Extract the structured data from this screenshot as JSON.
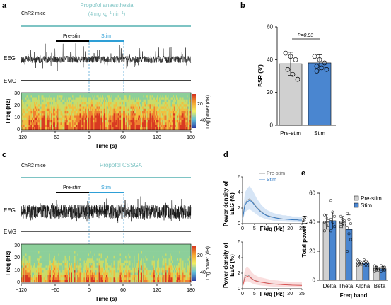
{
  "panels": {
    "a": "a",
    "b": "b",
    "c": "c",
    "d": "d",
    "e": "e"
  },
  "colors": {
    "teal": "#7ec4c4",
    "stim": "#2e9fd6",
    "prestim_bar": "#d0d0d0",
    "stim_bar": "#4a86d0",
    "d_top": "#2f78c4",
    "d_bottom": "#e05050"
  },
  "panel_a": {
    "group": "ChR2 mice",
    "condition_line1": "Propofol anaesthesia",
    "condition_line2": "(4 mg kg",
    "condition_sup1": "−1",
    "condition_mid": "min",
    "condition_sup2": "−1",
    "condition_end": ")",
    "prestim": "Pre-stim",
    "stim": "Stim",
    "eeg": "EEG",
    "emg": "EMG",
    "freq_label": "Freq (Hz)",
    "colorbar_label": "Log power (dB)",
    "cb_ticks": [
      "20",
      "−40"
    ],
    "x_ticks": [
      "−120",
      "−60",
      "0",
      "60",
      "120",
      "180"
    ],
    "xlabel": "Time (s)",
    "y_ticks": [
      "30",
      "20",
      "10",
      "0"
    ]
  },
  "panel_c": {
    "group": "ChR2 mice",
    "condition": "Propofol CSSGA",
    "prestim": "Pre-stim",
    "stim": "Stim",
    "eeg": "EEG",
    "emg": "EMG",
    "freq_label": "Freq (Hz)",
    "colorbar_label": "Log power (dB)",
    "cb_ticks": [
      "20",
      "−40"
    ],
    "x_ticks": [
      "−120",
      "−60",
      "0",
      "60",
      "120",
      "180"
    ],
    "xlabel": "Time (s)",
    "y_ticks": [
      "30",
      "20",
      "10",
      "0"
    ]
  },
  "chart_data": [
    {
      "panel": "b",
      "type": "bar",
      "categories": [
        "Pre-stim",
        "Stim"
      ],
      "values": [
        37.5,
        38
      ],
      "sd": [
        7,
        5
      ],
      "points": [
        [
          44,
          42,
          40,
          34,
          31,
          28
        ],
        [
          42,
          40,
          38,
          36,
          35,
          34,
          33
        ]
      ],
      "ylabel": "BSR (%)",
      "ylim": [
        0,
        60
      ],
      "yticks": [
        "0",
        "20",
        "40",
        "60"
      ],
      "annotation": "P=0.93"
    },
    {
      "panel": "d-top",
      "type": "line",
      "ylabel_line1": "Power density of",
      "ylabel_line2": "EEG (%)",
      "xlabel": "Freq (Hz)",
      "xlim": [
        0,
        25
      ],
      "ylim": [
        0,
        6
      ],
      "xticks": [
        "0",
        "5",
        "10",
        "15",
        "20",
        "25"
      ],
      "yticks": [
        "0",
        "2",
        "4",
        "6"
      ],
      "legend": [
        "Pre-stim",
        "Stim"
      ],
      "x": [
        0,
        1,
        2,
        3,
        4,
        5,
        6,
        7,
        8,
        9,
        10,
        11,
        12,
        13,
        14,
        15,
        16,
        17,
        18,
        19,
        20,
        21,
        22,
        23,
        24,
        25
      ],
      "series": [
        {
          "name": "Pre-stim",
          "values": [
            0.6,
            2.6,
            3.0,
            3.2,
            2.9,
            2.5,
            2.1,
            1.8,
            1.5,
            1.3,
            1.1,
            1.0,
            0.9,
            0.8,
            0.75,
            0.7,
            0.65,
            0.6,
            0.6,
            0.55,
            0.55,
            0.5,
            0.5,
            0.5,
            0.45,
            0.45
          ]
        },
        {
          "name": "Stim",
          "values": [
            0.5,
            2.4,
            2.8,
            3.0,
            2.8,
            2.4,
            2.0,
            1.7,
            1.45,
            1.25,
            1.05,
            0.95,
            0.85,
            0.8,
            0.72,
            0.68,
            0.62,
            0.6,
            0.58,
            0.55,
            0.52,
            0.5,
            0.48,
            0.48,
            0.45,
            0.45
          ]
        }
      ]
    },
    {
      "panel": "d-bottom",
      "type": "line",
      "ylabel_line1": "Power density of",
      "ylabel_line2": "EEG (%)",
      "xlabel": "Freq (Hz)",
      "xlim": [
        0,
        25
      ],
      "ylim": [
        0,
        6
      ],
      "xticks": [
        "0",
        "5",
        "10",
        "15",
        "20",
        "25"
      ],
      "yticks": [
        "0",
        "2",
        "4",
        "6"
      ],
      "x": [
        0,
        1,
        2,
        3,
        4,
        5,
        6,
        7,
        8,
        9,
        10,
        11,
        12,
        13,
        14,
        15,
        16,
        17,
        18,
        19,
        20,
        21,
        22,
        23,
        24,
        25
      ],
      "series": [
        {
          "values": [
            0.3,
            1.6,
            1.8,
            1.6,
            1.3,
            1.1,
            1.0,
            0.9,
            0.85,
            0.8,
            0.75,
            0.7,
            0.65,
            0.62,
            0.6,
            0.58,
            0.55,
            0.52,
            0.5,
            0.5,
            0.48,
            0.46,
            0.45,
            0.45,
            0.44,
            0.44
          ]
        },
        {
          "values": [
            0.25,
            1.4,
            1.6,
            1.5,
            1.25,
            1.05,
            0.95,
            0.88,
            0.82,
            0.78,
            0.72,
            0.68,
            0.64,
            0.6,
            0.58,
            0.56,
            0.54,
            0.52,
            0.5,
            0.48,
            0.47,
            0.46,
            0.45,
            0.44,
            0.44,
            0.43
          ]
        }
      ]
    },
    {
      "panel": "e",
      "type": "bar",
      "categories": [
        "Delta",
        "Theta",
        "Alpha",
        "Beta"
      ],
      "series": [
        {
          "name": "Pre-stim",
          "values": [
            40,
            40,
            12,
            8
          ],
          "sd": [
            5,
            4,
            2,
            1.5
          ],
          "points": [
            [
              45,
              43,
              41,
              40,
              38,
              36,
              34
            ],
            [
              44,
              42,
              41,
              40,
              39,
              38,
              37
            ],
            [
              14,
              13,
              12,
              12,
              11,
              11,
              10
            ],
            [
              10,
              9,
              8,
              8,
              7,
              7,
              6
            ]
          ]
        },
        {
          "name": "Stim",
          "values": [
            41,
            35,
            12,
            8
          ],
          "sd": [
            6,
            10,
            2,
            1.5
          ],
          "points": [
            [
              55,
              47,
              44,
              42,
              40,
              37,
              34
            ],
            [
              46,
              42,
              39,
              36,
              32,
              28,
              20
            ],
            [
              14,
              13,
              12,
              12,
              11,
              10,
              10
            ],
            [
              10,
              9,
              9,
              8,
              7,
              7,
              6
            ]
          ]
        }
      ],
      "ylabel": "Total power (%)",
      "xlabel": "Freq band",
      "ylim": [
        0,
        60
      ],
      "yticks": [
        "0",
        "20",
        "40",
        "60"
      ],
      "legend": [
        "Pre-stim",
        "Stim"
      ]
    }
  ]
}
